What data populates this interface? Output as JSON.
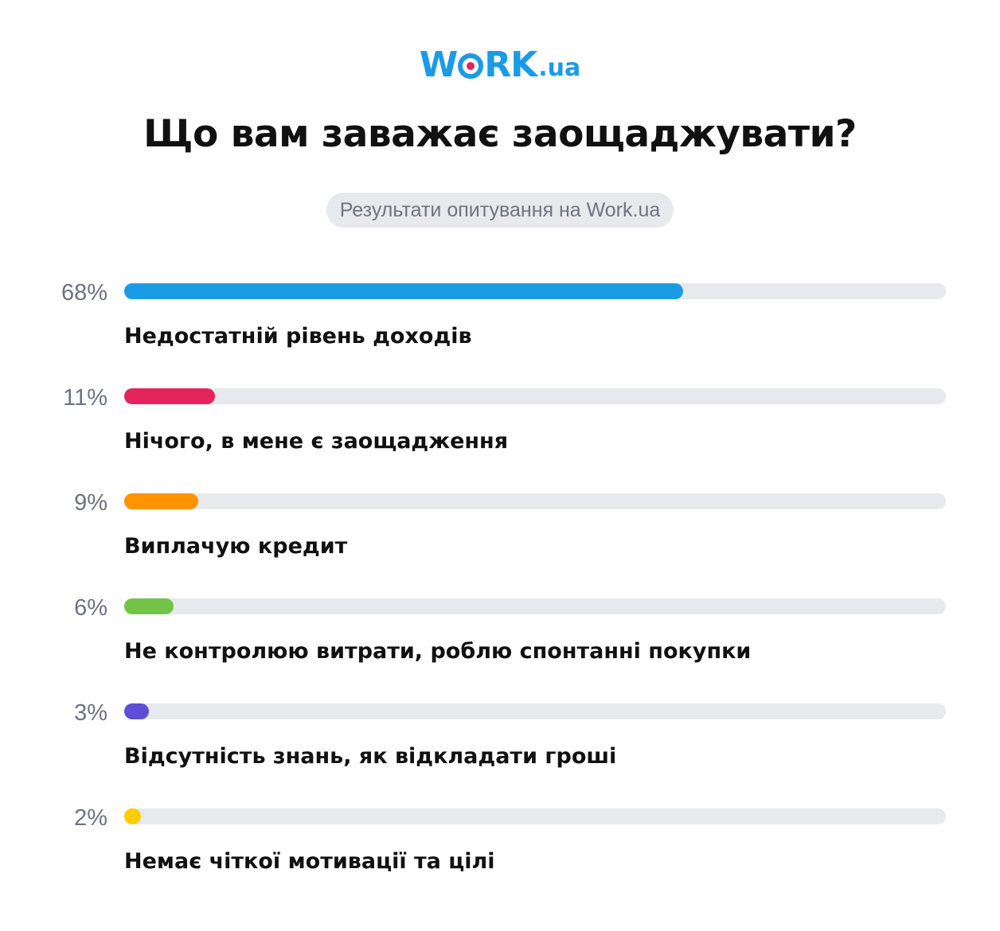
{
  "logo": {
    "prefix": "W",
    "suffix_main": "RK",
    "suffix": ".ua",
    "color": "#1a9be6",
    "dot_color": "#e5245e"
  },
  "chart_data": {
    "type": "bar",
    "orientation": "horizontal",
    "title": "Що вам заважає заощаджувати?",
    "subtitle": "Результати опитування на Work.ua",
    "value_max": 100,
    "track_color": "#e8e9ec",
    "items": [
      {
        "value": 68,
        "value_label": "68%",
        "label": "Недостатній рівень доходів",
        "color": "#1a9be6"
      },
      {
        "value": 11,
        "value_label": "11%",
        "label": "Нічого, в мене є заощадження",
        "color": "#e5245e"
      },
      {
        "value": 9,
        "value_label": "9%",
        "label": "Виплачую кредит",
        "color": "#ff9300"
      },
      {
        "value": 6,
        "value_label": "6%",
        "label": "Не контролюю витрати, роблю спонтанні покупки",
        "color": "#73c547"
      },
      {
        "value": 3,
        "value_label": "3%",
        "label": "Відсутність знань, як відкладати гроші",
        "color": "#5a4fd6"
      },
      {
        "value": 2,
        "value_label": "2%",
        "label": "Немає чіткої мотивації та цілі",
        "color": "#ffcc00"
      }
    ]
  }
}
